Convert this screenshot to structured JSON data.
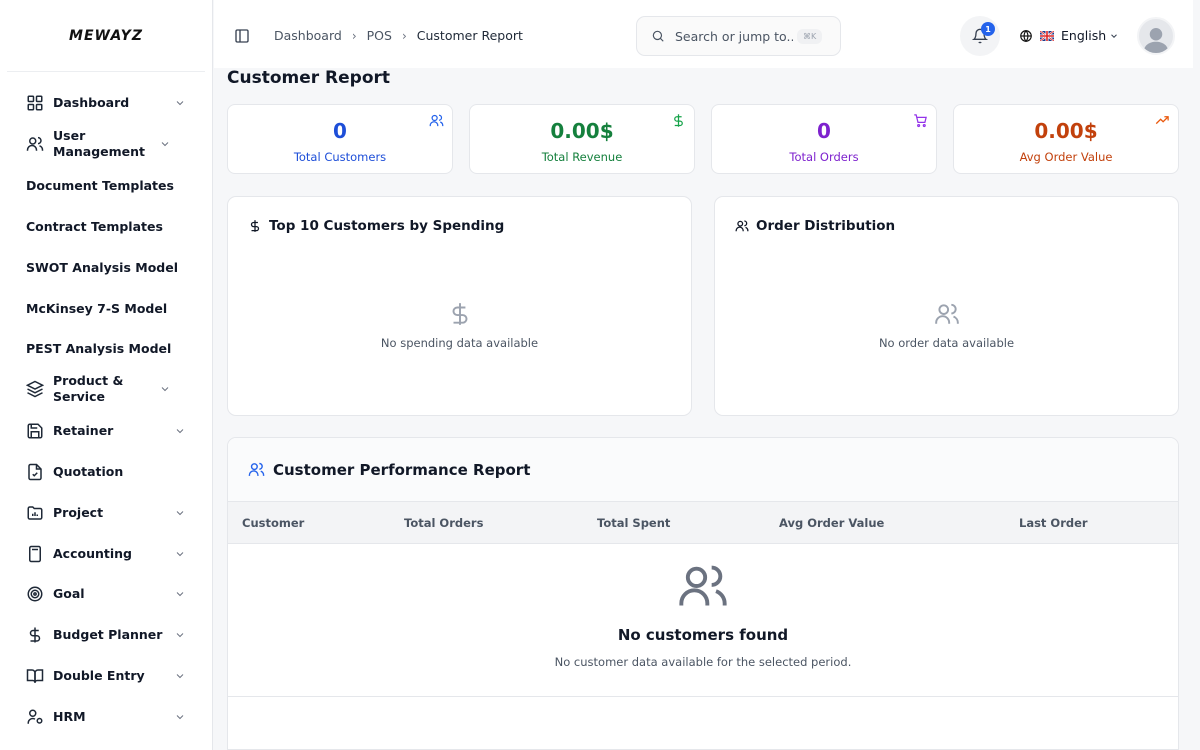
{
  "brand": {
    "logo_text": "MEWAYZ"
  },
  "sidebar": {
    "items": [
      {
        "label": "Dashboard",
        "icon": "grid-icon",
        "expandable": true
      },
      {
        "label": "User Management",
        "icon": "users-icon",
        "expandable": true
      },
      {
        "label": "Document Templates",
        "icon": "",
        "expandable": false
      },
      {
        "label": "Contract Templates",
        "icon": "",
        "expandable": false
      },
      {
        "label": "SWOT Analysis Model",
        "icon": "",
        "expandable": false
      },
      {
        "label": "McKinsey 7-S Model",
        "icon": "",
        "expandable": false
      },
      {
        "label": "PEST Analysis Model",
        "icon": "",
        "expandable": false
      },
      {
        "label": "Product & Service",
        "icon": "layers-icon",
        "expandable": true
      },
      {
        "label": "Retainer",
        "icon": "save-icon",
        "expandable": true
      },
      {
        "label": "Quotation",
        "icon": "file-check-icon",
        "expandable": false
      },
      {
        "label": "Project",
        "icon": "folder-chart-icon",
        "expandable": true
      },
      {
        "label": "Accounting",
        "icon": "calculator-icon",
        "expandable": true
      },
      {
        "label": "Goal",
        "icon": "target-icon",
        "expandable": true
      },
      {
        "label": "Budget Planner",
        "icon": "dollar-icon",
        "expandable": true
      },
      {
        "label": "Double Entry",
        "icon": "book-icon",
        "expandable": true
      },
      {
        "label": "HRM",
        "icon": "user-cog-icon",
        "expandable": true
      }
    ]
  },
  "header": {
    "breadcrumb": [
      "Dashboard",
      "POS",
      "Customer Report"
    ],
    "search_placeholder": "Search or jump to...",
    "search_shortcut": "⌘K",
    "notification_count": "1",
    "language": "English"
  },
  "page": {
    "title": "Customer Report"
  },
  "stats": [
    {
      "value": "0",
      "label": "Total Customers",
      "color": "#1d4ed8",
      "icon": "users-icon"
    },
    {
      "value": "0.00$",
      "label": "Total Revenue",
      "color": "#15803d",
      "icon": "dollar-icon"
    },
    {
      "value": "0",
      "label": "Total Orders",
      "color": "#7e22ce",
      "icon": "cart-icon"
    },
    {
      "value": "0.00$",
      "label": "Avg Order Value",
      "color": "#c2410c",
      "icon": "trending-up-icon"
    }
  ],
  "panels": [
    {
      "title": "Top 10 Customers by Spending",
      "empty_text": "No spending data available"
    },
    {
      "title": "Order Distribution",
      "empty_text": "No order data available"
    }
  ],
  "report": {
    "title": "Customer Performance Report",
    "columns": [
      "Customer",
      "Total Orders",
      "Total Spent",
      "Avg Order Value",
      "Last Order"
    ],
    "empty_title": "No customers found",
    "empty_text": "No customer data available for the selected period."
  }
}
